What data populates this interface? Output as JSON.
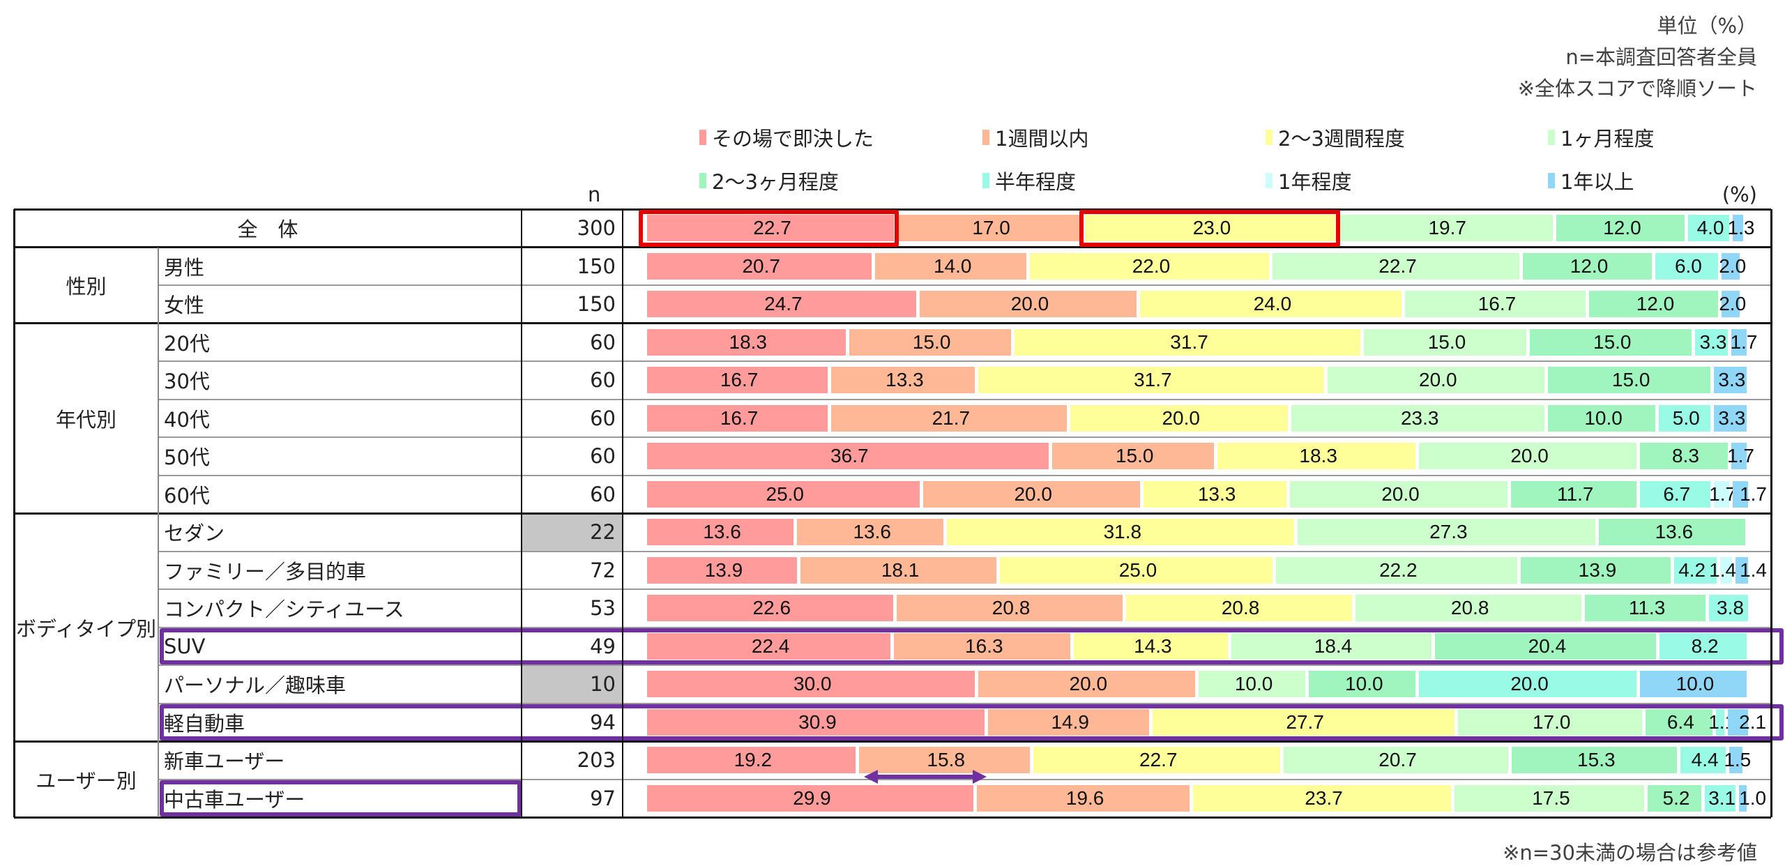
{
  "notes": [
    "単位（%）",
    "n=本調査回答者全員",
    "※全体スコアで降順ソート"
  ],
  "n_header": "n",
  "percent_header": "(%)",
  "footer_note": "※n=30未満の場合は参考値",
  "chart_data": {
    "type": "bar",
    "orientation": "horizontal-stacked-100",
    "title": "",
    "unit": "%",
    "legend_position": "top",
    "series_names": [
      "その場で即決した",
      "1週間以内",
      "2～3週間程度",
      "1ヶ月程度",
      "2～3ヶ月程度",
      "半年程度",
      "1年程度",
      "1年以上"
    ],
    "series_colors": [
      "#ff9b9b",
      "#ffb896",
      "#ffff99",
      "#ccffcc",
      "#9ff5bd",
      "#99fae6",
      "#ccfcfc",
      "#8fd6f7"
    ],
    "groups": [
      {
        "label": "全　体",
        "rows": [
          {
            "label": "",
            "n": "300",
            "values": [
              22.7,
              17.0,
              23.0,
              19.7,
              12.0,
              4.0,
              0,
              1.3
            ]
          }
        ]
      },
      {
        "label": "性別",
        "rows": [
          {
            "label": "男性",
            "n": "150",
            "values": [
              20.7,
              14.0,
              22.0,
              22.7,
              12.0,
              6.0,
              0,
              2.0
            ]
          },
          {
            "label": "女性",
            "n": "150",
            "values": [
              24.7,
              20.0,
              24.0,
              16.7,
              12.0,
              0,
              0,
              2.0
            ]
          }
        ]
      },
      {
        "label": "年代別",
        "rows": [
          {
            "label": "20代",
            "n": "60",
            "values": [
              18.3,
              15.0,
              31.7,
              15.0,
              15.0,
              3.3,
              0,
              1.7
            ]
          },
          {
            "label": "30代",
            "n": "60",
            "values": [
              16.7,
              13.3,
              31.7,
              20.0,
              15.0,
              0,
              0,
              3.3
            ]
          },
          {
            "label": "40代",
            "n": "60",
            "values": [
              16.7,
              21.7,
              20.0,
              23.3,
              10.0,
              5.0,
              0,
              3.3
            ]
          },
          {
            "label": "50代",
            "n": "60",
            "values": [
              36.7,
              15.0,
              18.3,
              20.0,
              8.3,
              0,
              0,
              1.7
            ]
          },
          {
            "label": "60代",
            "n": "60",
            "values": [
              25.0,
              20.0,
              13.3,
              20.0,
              11.7,
              6.7,
              1.7,
              1.7
            ]
          }
        ]
      },
      {
        "label": "ボディタイプ別",
        "rows": [
          {
            "label": "セダン",
            "n": "22",
            "reference": true,
            "values": [
              13.6,
              13.6,
              31.8,
              27.3,
              13.6,
              0,
              0,
              0
            ]
          },
          {
            "label": "ファミリー／多目的車",
            "n": "72",
            "values": [
              13.9,
              18.1,
              25.0,
              22.2,
              13.9,
              4.2,
              1.4,
              1.4
            ]
          },
          {
            "label": "コンパクト／シティユース",
            "n": "53",
            "values": [
              22.6,
              20.8,
              20.8,
              20.8,
              11.3,
              3.8,
              0,
              0
            ]
          },
          {
            "label": "SUV",
            "n": "49",
            "highlight": "row",
            "values": [
              22.4,
              16.3,
              14.3,
              18.4,
              20.4,
              8.2,
              0,
              0
            ]
          },
          {
            "label": "パーソナル／趣味車",
            "n": "10",
            "reference": true,
            "values": [
              30.0,
              20.0,
              0,
              10.0,
              10.0,
              20.0,
              0,
              10.0
            ]
          },
          {
            "label": "軽自動車",
            "n": "94",
            "highlight": "row",
            "values": [
              30.9,
              14.9,
              27.7,
              17.0,
              6.4,
              1.1,
              0,
              2.1
            ]
          }
        ]
      },
      {
        "label": "ユーザー別",
        "rows": [
          {
            "label": "新車ユーザー",
            "n": "203",
            "values": [
              19.2,
              15.8,
              22.7,
              20.7,
              15.3,
              4.4,
              0,
              1.5
            ]
          },
          {
            "label": "中古車ユーザー",
            "n": "97",
            "highlight": "label",
            "values": [
              29.9,
              19.6,
              23.7,
              17.5,
              5.2,
              3.1,
              0,
              1.0
            ]
          }
        ]
      }
    ]
  }
}
